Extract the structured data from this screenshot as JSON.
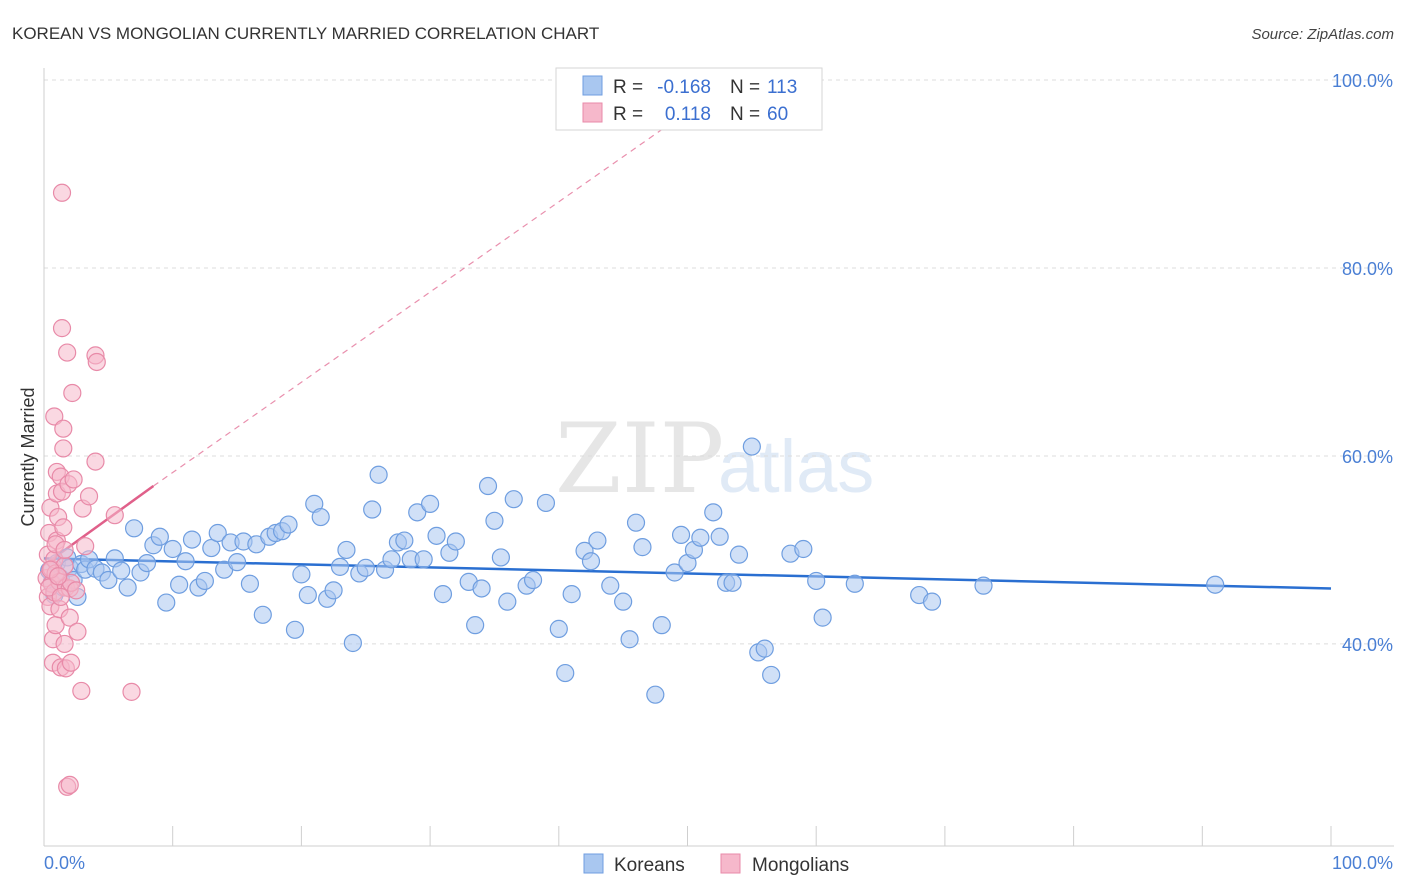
{
  "title": "KOREAN VS MONGOLIAN CURRENTLY MARRIED CORRELATION CHART",
  "source": "Source: ZipAtlas.com",
  "watermark": {
    "zip": "ZIP",
    "atlas": "atlas"
  },
  "colors": {
    "korean_fill": "#a9c7f0",
    "korean_stroke": "#6f9ee0",
    "korean_line": "#2a6fd1",
    "mongolian_fill": "#f6b8cb",
    "mongolian_stroke": "#e88aa8",
    "mongolian_line": "#e0608a",
    "tick_label": "#4a7fd4",
    "grid": "#dcdcdc"
  },
  "legend": {
    "rows": [
      {
        "r_label": "R =",
        "r_value": "-0.168",
        "n_label": "N =",
        "n_value": "113"
      },
      {
        "r_label": "R =",
        "r_value": "0.118",
        "n_label": "N =",
        "n_value": "60"
      }
    ]
  },
  "bottom_legend": {
    "koreans": "Koreans",
    "mongolians": "Mongolians"
  },
  "chart_data": {
    "type": "scatter",
    "title": "KOREAN VS MONGOLIAN CURRENTLY MARRIED CORRELATION CHART",
    "xlabel": "",
    "ylabel": "Currently Married",
    "xlim": [
      0,
      100
    ],
    "ylim": [
      18.5,
      100
    ],
    "x_tick_labels": [
      "0.0%",
      "100.0%"
    ],
    "y_ticks": [
      {
        "value": 100,
        "label": "100.0%"
      },
      {
        "value": 80,
        "label": "80.0%"
      },
      {
        "value": 60,
        "label": "60.0%"
      },
      {
        "value": 40,
        "label": "40.0%"
      }
    ],
    "grid": true,
    "series": [
      {
        "name": "Koreans",
        "r": -0.168,
        "n": 113,
        "trend": {
          "x0": 0,
          "y0": 49.1,
          "x1": 100,
          "y1": 45.9,
          "dashed_extension": false
        },
        "points": [
          [
            0.4,
            47.8
          ],
          [
            0.6,
            46.5
          ],
          [
            0.8,
            45.2
          ],
          [
            1.0,
            48.6
          ],
          [
            1.3,
            47.0
          ],
          [
            1.5,
            46.0
          ],
          [
            1.8,
            49.2
          ],
          [
            2.0,
            48.1
          ],
          [
            2.3,
            46.8
          ],
          [
            2.6,
            45.0
          ],
          [
            2.9,
            48.5
          ],
          [
            3.2,
            47.9
          ],
          [
            3.5,
            49.0
          ],
          [
            4.0,
            48.0
          ],
          [
            4.5,
            47.6
          ],
          [
            5.0,
            46.8
          ],
          [
            5.5,
            49.1
          ],
          [
            6.0,
            47.8
          ],
          [
            6.5,
            46.0
          ],
          [
            7.0,
            52.3
          ],
          [
            7.5,
            47.6
          ],
          [
            8.0,
            48.6
          ],
          [
            8.5,
            50.5
          ],
          [
            9.0,
            51.4
          ],
          [
            9.5,
            44.4
          ],
          [
            10.0,
            50.1
          ],
          [
            10.5,
            46.3
          ],
          [
            11.0,
            48.8
          ],
          [
            11.5,
            51.1
          ],
          [
            12.0,
            46.0
          ],
          [
            12.5,
            46.7
          ],
          [
            13.0,
            50.2
          ],
          [
            13.5,
            51.8
          ],
          [
            14.0,
            47.9
          ],
          [
            14.5,
            50.8
          ],
          [
            15.0,
            48.7
          ],
          [
            15.5,
            50.9
          ],
          [
            16.0,
            46.4
          ],
          [
            16.5,
            50.6
          ],
          [
            17.0,
            43.1
          ],
          [
            17.5,
            51.4
          ],
          [
            18.0,
            51.8
          ],
          [
            18.5,
            52.0
          ],
          [
            19.0,
            52.7
          ],
          [
            19.5,
            41.5
          ],
          [
            20.0,
            47.4
          ],
          [
            20.5,
            45.2
          ],
          [
            21.0,
            54.9
          ],
          [
            21.5,
            53.5
          ],
          [
            22.0,
            44.8
          ],
          [
            22.5,
            45.7
          ],
          [
            23.0,
            48.2
          ],
          [
            23.5,
            50.0
          ],
          [
            24.0,
            40.1
          ],
          [
            24.5,
            47.5
          ],
          [
            25.0,
            48.1
          ],
          [
            25.5,
            54.3
          ],
          [
            26.0,
            58.0
          ],
          [
            26.5,
            47.9
          ],
          [
            27.0,
            49.0
          ],
          [
            27.5,
            50.8
          ],
          [
            28.0,
            51.0
          ],
          [
            28.5,
            49.0
          ],
          [
            29.0,
            54.0
          ],
          [
            29.5,
            49.0
          ],
          [
            30.0,
            54.9
          ],
          [
            30.5,
            51.5
          ],
          [
            31.0,
            45.3
          ],
          [
            31.5,
            49.7
          ],
          [
            32.0,
            50.9
          ],
          [
            33.0,
            46.6
          ],
          [
            33.5,
            42.0
          ],
          [
            34.0,
            45.9
          ],
          [
            34.5,
            56.8
          ],
          [
            35.0,
            53.1
          ],
          [
            35.5,
            49.2
          ],
          [
            36.0,
            44.5
          ],
          [
            36.5,
            55.4
          ],
          [
            37.5,
            46.2
          ],
          [
            38.0,
            46.8
          ],
          [
            39.0,
            55.0
          ],
          [
            40.0,
            41.6
          ],
          [
            40.5,
            36.9
          ],
          [
            41.0,
            45.3
          ],
          [
            42.0,
            49.9
          ],
          [
            42.5,
            48.8
          ],
          [
            43.0,
            51.0
          ],
          [
            44.0,
            46.2
          ],
          [
            45.0,
            44.5
          ],
          [
            45.5,
            40.5
          ],
          [
            46.0,
            52.9
          ],
          [
            46.5,
            50.3
          ],
          [
            47.5,
            34.6
          ],
          [
            48.0,
            42.0
          ],
          [
            49.0,
            47.6
          ],
          [
            49.5,
            51.6
          ],
          [
            50.0,
            48.6
          ],
          [
            50.5,
            50.0
          ],
          [
            51.0,
            51.3
          ],
          [
            52.0,
            54.0
          ],
          [
            52.5,
            51.4
          ],
          [
            53.0,
            46.5
          ],
          [
            53.5,
            46.5
          ],
          [
            54.0,
            49.5
          ],
          [
            55.0,
            61.0
          ],
          [
            55.5,
            39.1
          ],
          [
            56.0,
            39.5
          ],
          [
            56.5,
            36.7
          ],
          [
            58.0,
            49.6
          ],
          [
            59.0,
            50.1
          ],
          [
            60.0,
            46.7
          ],
          [
            60.5,
            42.8
          ],
          [
            63.0,
            46.4
          ],
          [
            68.0,
            45.2
          ],
          [
            69.0,
            44.5
          ],
          [
            73.0,
            46.2
          ],
          [
            91.0,
            46.3
          ]
        ]
      },
      {
        "name": "Mongolians",
        "r": 0.118,
        "n": 60,
        "trend": {
          "x0": 0,
          "y0": 48.4,
          "x1": 8.5,
          "y1": 56.8,
          "dash_to_x": 53.5,
          "dash_to_y": 100.0
        },
        "points": [
          [
            0.2,
            47.0
          ],
          [
            0.3,
            45.0
          ],
          [
            0.3,
            49.5
          ],
          [
            0.4,
            51.8
          ],
          [
            0.5,
            44.0
          ],
          [
            0.5,
            54.5
          ],
          [
            0.6,
            48.0
          ],
          [
            0.6,
            46.4
          ],
          [
            0.7,
            38.0
          ],
          [
            0.7,
            40.5
          ],
          [
            0.8,
            64.2
          ],
          [
            0.8,
            49.0
          ],
          [
            0.8,
            45.5
          ],
          [
            0.9,
            42.0
          ],
          [
            0.9,
            47.5
          ],
          [
            1.0,
            51.0
          ],
          [
            1.0,
            58.3
          ],
          [
            1.0,
            56.0
          ],
          [
            1.1,
            53.5
          ],
          [
            1.2,
            46.6
          ],
          [
            1.2,
            43.7
          ],
          [
            1.3,
            37.5
          ],
          [
            1.3,
            57.8
          ],
          [
            1.4,
            88.0
          ],
          [
            1.4,
            56.2
          ],
          [
            1.4,
            73.6
          ],
          [
            1.5,
            62.9
          ],
          [
            1.5,
            60.8
          ],
          [
            1.5,
            52.4
          ],
          [
            1.6,
            48.3
          ],
          [
            1.6,
            40.0
          ],
          [
            1.7,
            46.0
          ],
          [
            1.7,
            37.4
          ],
          [
            1.8,
            71.0
          ],
          [
            1.8,
            24.8
          ],
          [
            1.9,
            57.0
          ],
          [
            2.0,
            45.9
          ],
          [
            2.0,
            25.0
          ],
          [
            2.0,
            42.8
          ],
          [
            2.1,
            38.0
          ],
          [
            2.1,
            46.5
          ],
          [
            2.2,
            66.7
          ],
          [
            2.3,
            57.5
          ],
          [
            2.5,
            45.7
          ],
          [
            2.6,
            41.3
          ],
          [
            2.9,
            35.0
          ],
          [
            3.0,
            54.4
          ],
          [
            3.2,
            50.4
          ],
          [
            3.5,
            55.7
          ],
          [
            4.0,
            59.4
          ],
          [
            4.0,
            70.7
          ],
          [
            4.1,
            70.0
          ],
          [
            5.5,
            53.7
          ],
          [
            6.8,
            34.9
          ],
          [
            0.4,
            46.0
          ],
          [
            0.5,
            47.9
          ],
          [
            0.9,
            50.6
          ],
          [
            1.1,
            47.2
          ],
          [
            1.3,
            45.0
          ],
          [
            1.6,
            50.0
          ]
        ]
      }
    ]
  }
}
